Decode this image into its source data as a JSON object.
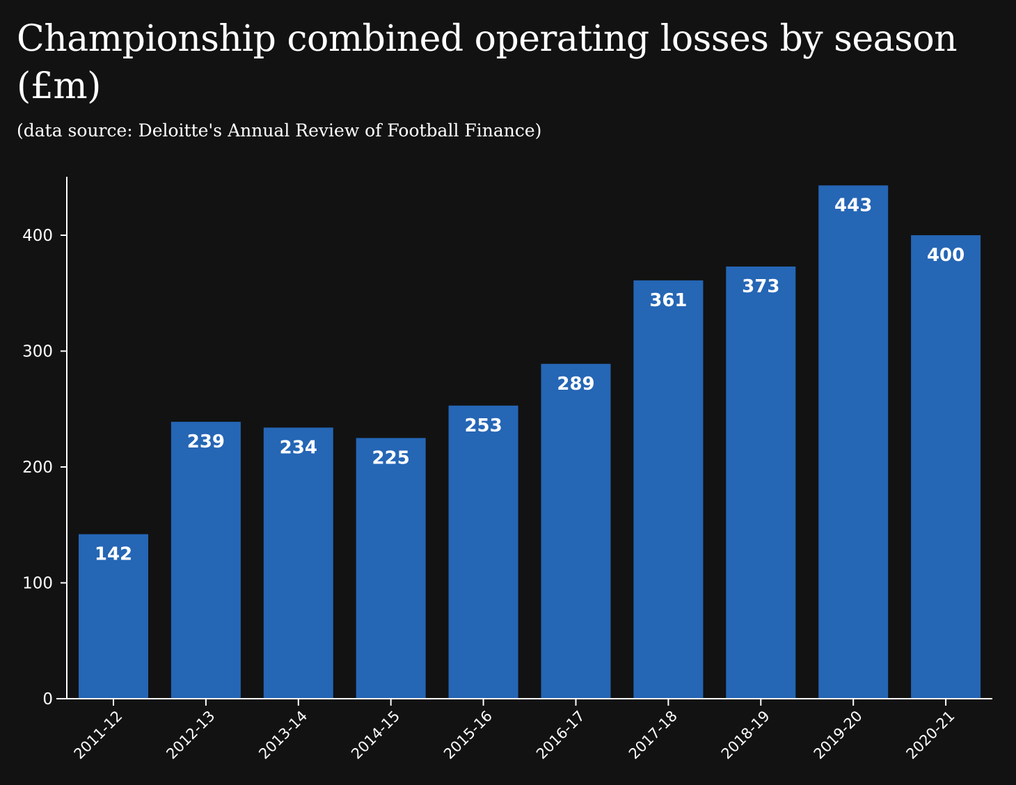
{
  "header": {
    "title": "Championship combined operating losses by season (£m)",
    "subtitle": "(data source: Deloitte's Annual Review of Football Finance)"
  },
  "colors": {
    "background": "#121212",
    "bar": "#2566b5",
    "text": "#ffffff"
  },
  "chart_data": {
    "type": "bar",
    "title": "Championship combined operating losses by season (£m)",
    "subtitle": "(data source: Deloitte's Annual Review of Football Finance)",
    "categories": [
      "2011-12",
      "2012-13",
      "2013-14",
      "2014-15",
      "2015-16",
      "2016-17",
      "2017-18",
      "2018-19",
      "2019-20",
      "2020-21"
    ],
    "values": [
      142,
      239,
      234,
      225,
      253,
      289,
      361,
      373,
      443,
      400
    ],
    "data_labels": [
      "142",
      "239",
      "234",
      "225",
      "253",
      "289",
      "361",
      "373",
      "443",
      "400"
    ],
    "yticks": [
      0,
      100,
      200,
      300,
      400
    ],
    "ytick_labels": [
      "0",
      "100",
      "200",
      "300",
      "400"
    ],
    "ylim": [
      0,
      450
    ],
    "xlabel": "",
    "ylabel": "",
    "grid": false,
    "legend": "none"
  }
}
